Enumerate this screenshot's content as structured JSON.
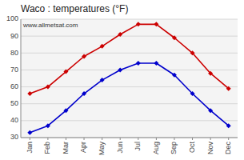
{
  "chart_data": {
    "type": "line",
    "title": "Waco : temperatures (°F)",
    "categories": [
      "Jan",
      "Feb",
      "Mar",
      "Apr",
      "May",
      "Jun",
      "Jul",
      "Aug",
      "Sep",
      "Oct",
      "Nov",
      "Dec"
    ],
    "series": [
      {
        "color": "#cc0000",
        "values": [
          56,
          60,
          69,
          78,
          84,
          91,
          97,
          97,
          89,
          80,
          68,
          59
        ]
      },
      {
        "color": "#0000cc",
        "values": [
          33,
          37,
          46,
          56,
          64,
          70,
          74,
          74,
          67,
          56,
          46,
          37
        ]
      }
    ],
    "ylim": [
      30,
      100
    ],
    "yticks": [
      30,
      40,
      50,
      60,
      70,
      80,
      90,
      100
    ],
    "grid": true,
    "marker": "diamond",
    "annotations": [
      "www.allmetsat.com"
    ]
  }
}
